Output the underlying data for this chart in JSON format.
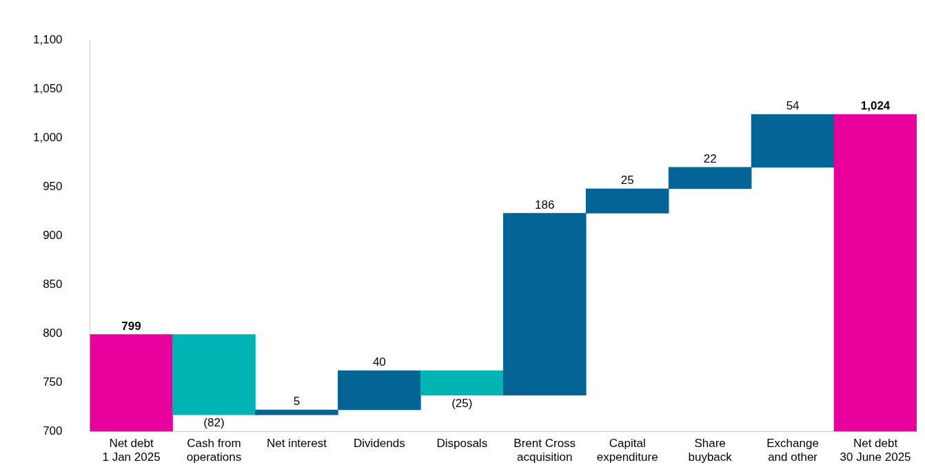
{
  "chart_data": {
    "type": "bar",
    "categories": [
      "Net debt\n1 Jan 2025",
      "Cash from\noperations",
      "Net interest",
      "Dividends",
      "Disposals",
      "Brent Cross\nacquisition",
      "Capital\nexpenditure",
      "Share\nbuyback",
      "Exchange\nand other",
      "Net debt\n30 June 2025"
    ],
    "values": [
      799,
      -82,
      5,
      40,
      -25,
      186,
      25,
      22,
      54,
      1024
    ],
    "base": [
      0,
      799,
      717,
      722,
      762,
      737,
      923,
      948,
      970,
      0
    ],
    "colors": [
      "#e8009c",
      "#00b4b4",
      "#056496",
      "#056496",
      "#00b4b4",
      "#056496",
      "#056496",
      "#056496",
      "#056496",
      "#e8009c"
    ],
    "value_labels": [
      "799",
      "(82)",
      "5",
      "40",
      "(25)",
      "186",
      "25",
      "22",
      "54",
      "1,024"
    ],
    "ylim": [
      700,
      1100
    ],
    "yticks": [
      700,
      750,
      800,
      850,
      900,
      950,
      {
        "value": 1000,
        "label": "1,000"
      },
      {
        "value": 1050,
        "label": "1,050"
      },
      {
        "value": 1100,
        "label": "1,100"
      }
    ],
    "grid": false,
    "legend": false
  }
}
